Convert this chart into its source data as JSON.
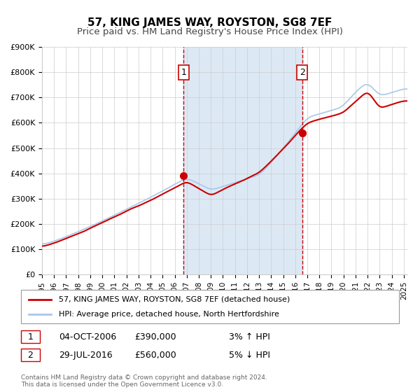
{
  "title": "57, KING JAMES WAY, ROYSTON, SG8 7EF",
  "subtitle": "Price paid vs. HM Land Registry's House Price Index (HPI)",
  "xlabel": "",
  "ylabel": "",
  "ylim": [
    0,
    900000
  ],
  "yticks": [
    0,
    100000,
    200000,
    300000,
    400000,
    500000,
    600000,
    700000,
    800000,
    900000
  ],
  "ytick_labels": [
    "£0",
    "£100K",
    "£200K",
    "£300K",
    "£400K",
    "£500K",
    "£600K",
    "£700K",
    "£800K",
    "£900K"
  ],
  "xlim_start": 1995.0,
  "xlim_end": 2025.3,
  "xticks": [
    1995,
    1996,
    1997,
    1998,
    1999,
    2000,
    2001,
    2002,
    2003,
    2004,
    2005,
    2006,
    2007,
    2008,
    2009,
    2010,
    2011,
    2012,
    2013,
    2014,
    2015,
    2016,
    2017,
    2018,
    2019,
    2020,
    2021,
    2022,
    2023,
    2024,
    2025
  ],
  "background_color": "#ffffff",
  "plot_bg_color": "#ffffff",
  "shaded_region_color": "#dce9f5",
  "grid_color": "#cccccc",
  "line1_color": "#cc0000",
  "line2_color": "#a8c8e8",
  "marker_color": "#cc0000",
  "vline_color": "#cc0000",
  "sale1_x": 2006.75,
  "sale1_y": 390000,
  "sale2_x": 2016.58,
  "sale2_y": 560000,
  "legend1_label": "57, KING JAMES WAY, ROYSTON, SG8 7EF (detached house)",
  "legend2_label": "HPI: Average price, detached house, North Hertfordshire",
  "annotation1_label": "1",
  "annotation2_label": "2",
  "table_row1": [
    "1",
    "04-OCT-2006",
    "£390,000",
    "3% ↑ HPI"
  ],
  "table_row2": [
    "2",
    "29-JUL-2016",
    "£560,000",
    "5% ↓ HPI"
  ],
  "footnote": "Contains HM Land Registry data © Crown copyright and database right 2024.\nThis data is licensed under the Open Government Licence v3.0.",
  "title_fontsize": 11,
  "subtitle_fontsize": 9.5
}
